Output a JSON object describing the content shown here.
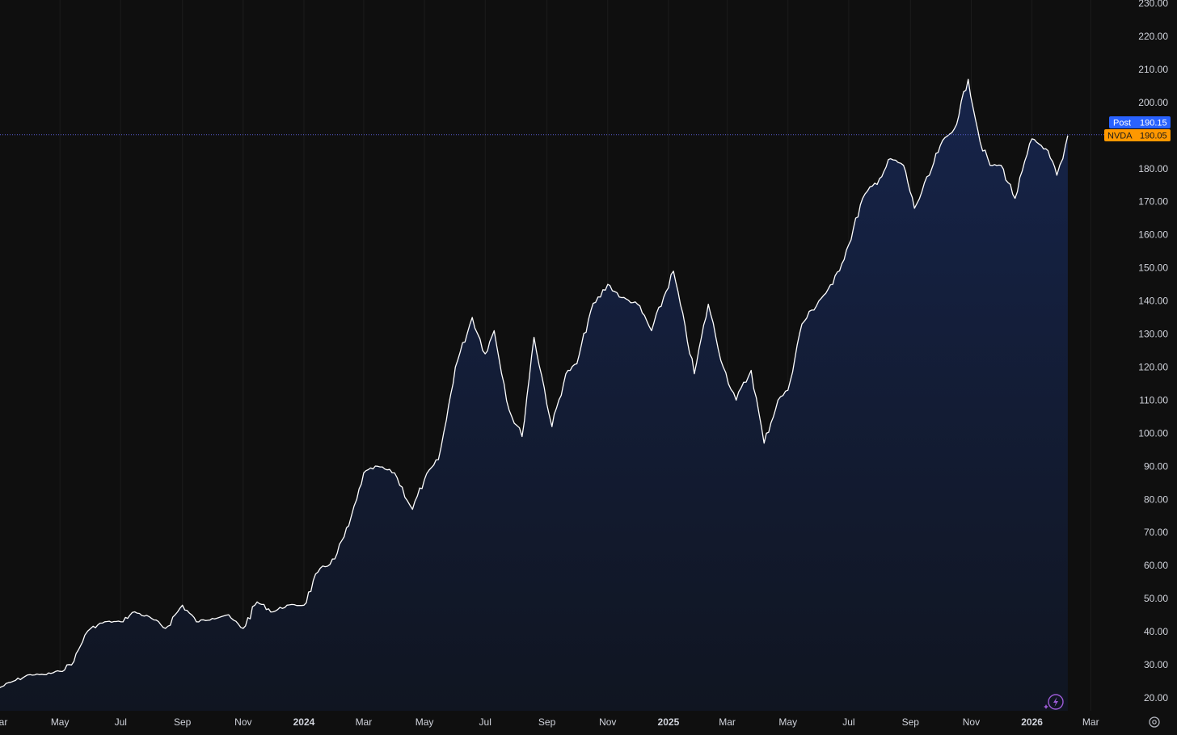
{
  "colors": {
    "background": "#0f0f0f",
    "grid": "#1c1c1c",
    "line": "#ffffff",
    "area_top": "#16244a",
    "area_bottom": "#101521",
    "price_line": "#5b5fd6",
    "post_badge": "#2962ff",
    "ticker_badge": "#ff9800",
    "axis_text": "#d1d4dc",
    "lightning_icon": "#9c5bd6"
  },
  "badges": {
    "post_label": "Post",
    "post_value": "190.15",
    "ticker_label": "NVDA",
    "ticker_value": "190.05"
  },
  "icons": {
    "lightning": "lightning-icon",
    "settings": "gear-icon"
  },
  "chart_data": {
    "type": "area",
    "ticker": "NVDA",
    "x_axis_labels": [
      "Mar",
      "May",
      "Jul",
      "Sep",
      "Nov",
      "2024",
      "Mar",
      "May",
      "Jul",
      "Sep",
      "Nov",
      "2025",
      "Mar",
      "May",
      "Jul",
      "Sep",
      "Nov",
      "2026",
      "Mar"
    ],
    "y_axis_labels": [
      "230.00",
      "220.00",
      "210.00",
      "200.00",
      "190.00",
      "180.00",
      "170.00",
      "160.00",
      "150.00",
      "140.00",
      "130.00",
      "120.00",
      "110.00",
      "100.00",
      "90.00",
      "80.00",
      "70.00",
      "60.00",
      "50.00",
      "40.00",
      "30.00",
      "20.00"
    ],
    "ylim": [
      20,
      230
    ],
    "grid": "vertical",
    "series": [
      {
        "x": [
          "2023-03-01",
          "2023-03-15",
          "2023-04-01",
          "2023-04-15",
          "2023-05-01",
          "2023-05-15",
          "2023-05-26",
          "2023-06-01",
          "2023-06-15",
          "2023-07-01",
          "2023-07-15",
          "2023-08-01",
          "2023-08-15",
          "2023-09-01",
          "2023-09-15",
          "2023-10-01",
          "2023-10-15",
          "2023-11-01",
          "2023-11-15",
          "2023-12-01",
          "2023-12-15",
          "2024-01-01",
          "2024-01-15",
          "2024-02-01",
          "2024-02-15",
          "2024-02-23",
          "2024-03-01",
          "2024-03-15",
          "2024-04-01",
          "2024-04-19",
          "2024-05-01",
          "2024-05-15",
          "2024-05-23",
          "2024-06-01",
          "2024-06-18",
          "2024-07-01",
          "2024-07-10",
          "2024-07-25",
          "2024-08-07",
          "2024-08-19",
          "2024-09-06",
          "2024-09-20",
          "2024-10-01",
          "2024-10-15",
          "2024-11-01",
          "2024-11-15",
          "2024-12-01",
          "2024-12-15",
          "2025-01-06",
          "2025-01-27",
          "2025-02-10",
          "2025-02-25",
          "2025-03-10",
          "2025-03-25",
          "2025-04-07",
          "2025-04-21",
          "2025-05-01",
          "2025-05-15",
          "2025-06-01",
          "2025-06-15",
          "2025-07-01",
          "2025-07-15",
          "2025-08-01",
          "2025-08-12",
          "2025-08-25",
          "2025-09-05",
          "2025-09-20",
          "2025-10-01",
          "2025-10-15",
          "2025-10-29",
          "2025-11-10",
          "2025-11-20",
          "2025-12-01",
          "2025-12-15",
          "2026-01-01",
          "2026-01-15",
          "2026-01-26",
          "2026-02-01",
          "2026-02-06"
        ],
        "y": [
          23,
          25,
          27,
          27,
          28,
          31,
          39,
          41,
          43,
          43,
          46,
          44,
          41,
          48,
          43,
          44,
          45,
          41,
          49,
          46,
          48,
          48,
          58,
          62,
          72,
          80,
          88,
          90,
          88,
          77,
          86,
          92,
          104,
          120,
          135,
          124,
          131,
          107,
          99,
          129,
          102,
          118,
          121,
          137,
          145,
          141,
          139,
          131,
          149,
          118,
          139,
          120,
          110,
          119,
          97,
          110,
          113,
          133,
          140,
          145,
          157,
          171,
          177,
          183,
          181,
          168,
          178,
          187,
          192,
          207,
          188,
          181,
          181,
          171,
          189,
          186,
          178,
          183,
          190
        ]
      }
    ]
  }
}
